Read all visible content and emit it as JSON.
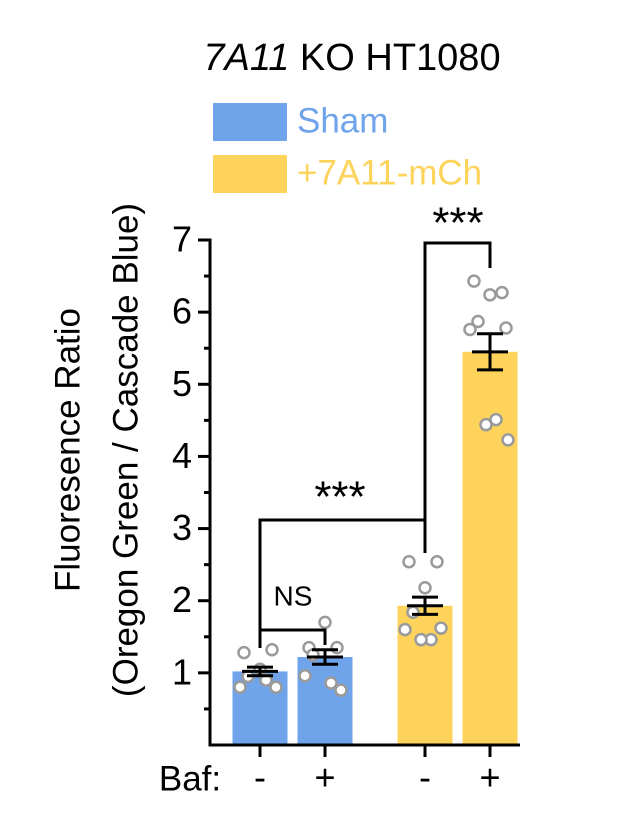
{
  "chart_data": {
    "type": "bar",
    "title": "7A11 KO HT1080",
    "ylabel": [
      "Fluoresence Ratio",
      "(Oregon Green / Cascade Blue)"
    ],
    "xlabel": "Baf:",
    "categories": [
      "-",
      "+",
      "-",
      "+"
    ],
    "series": [
      {
        "name": "Sham",
        "color": "#6fa3ea",
        "values": [
          1.02,
          1.22,
          null,
          null
        ],
        "errors": [
          0.06,
          0.1,
          null,
          null
        ],
        "points": [
          [
            1.28,
            1.32,
            1.05,
            0.95,
            0.8,
            0.8,
            0.9
          ],
          [
            1.35,
            1.35,
            1.7,
            1.25,
            0.96,
            0.76,
            0.86
          ],
          null,
          null
        ]
      },
      {
        "name": "+7A11-mCh",
        "color": "#fdd35c",
        "values": [
          null,
          null,
          1.93,
          5.45
        ],
        "errors": [
          null,
          null,
          0.12,
          0.25
        ],
        "points": [
          null,
          null,
          [
            2.54,
            2.54,
            2.18,
            1.84,
            1.6,
            1.62,
            1.46,
            1.46
          ],
          [
            6.43,
            6.27,
            6.24,
            5.87,
            5.76,
            5.78,
            4.51,
            4.44,
            4.23
          ]
        ]
      }
    ],
    "annotations": [
      "NS",
      "***",
      "***"
    ],
    "ylim": [
      0,
      7
    ],
    "yticks": [
      1,
      2,
      3,
      4,
      5,
      6,
      7
    ]
  }
}
